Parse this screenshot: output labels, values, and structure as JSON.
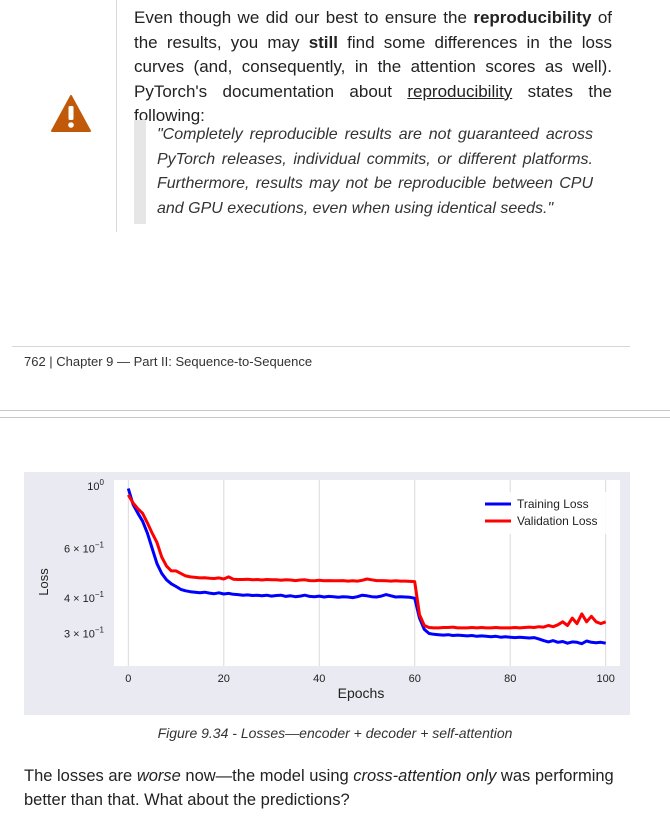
{
  "note": {
    "icon": "warning-icon",
    "icon_color": "#c05a0a",
    "para": {
      "t1": "Even though we did our best to ensure the ",
      "b1": "reproducibility",
      "t2": " of the results, you may ",
      "b2": "still",
      "t3": " find some differences in the loss curves (and, consequently, in the attention scores as well). PyTorch's documentation about ",
      "link": "reproducibility",
      "t4": " states the following:"
    },
    "quote": "\"Completely reproducible results are not guaranteed across PyTorch releases, individual commits, or different platforms. Furthermore, results may not be reproducible between CPU and GPU executions, even when using identical seeds.\""
  },
  "footer": {
    "text": "762 | Chapter 9 — Part II: Sequence-to-Sequence"
  },
  "caption": "Figure 9.34 - Losses—encoder + decoder + self-attention",
  "body": {
    "t1": "The losses are ",
    "i1": "worse",
    "t2": " now—the model using ",
    "i2": "cross-attention only",
    "t3": " was performing better than that. What about the predictions?"
  },
  "chart_data": {
    "type": "line",
    "xlabel": "Epochs",
    "ylabel": "Loss",
    "xlim": [
      -3,
      103
    ],
    "ylim": [
      0.23,
      1.05
    ],
    "yscale": "log",
    "grid": "x",
    "legend_position": "top-right",
    "x_ticks": [
      0,
      20,
      40,
      60,
      80,
      100
    ],
    "y_ticks": [
      {
        "value": 1.0,
        "base": "10",
        "exp": "0"
      },
      {
        "value": 0.6,
        "base": "6 × 10",
        "exp": "−1"
      },
      {
        "value": 0.4,
        "base": "4 × 10",
        "exp": "−1"
      },
      {
        "value": 0.3,
        "base": "3 × 10",
        "exp": "−1"
      }
    ],
    "x": [
      0,
      1,
      2,
      3,
      4,
      5,
      6,
      7,
      8,
      9,
      10,
      11,
      12,
      13,
      14,
      15,
      16,
      17,
      18,
      19,
      20,
      21,
      22,
      23,
      24,
      25,
      26,
      27,
      28,
      29,
      30,
      31,
      32,
      33,
      34,
      35,
      36,
      37,
      38,
      39,
      40,
      41,
      42,
      43,
      44,
      45,
      46,
      47,
      48,
      49,
      50,
      51,
      52,
      53,
      54,
      55,
      56,
      57,
      58,
      59,
      60,
      61,
      62,
      63,
      64,
      65,
      66,
      67,
      68,
      69,
      70,
      71,
      72,
      73,
      74,
      75,
      76,
      77,
      78,
      79,
      80,
      81,
      82,
      83,
      84,
      85,
      86,
      87,
      88,
      89,
      90,
      91,
      92,
      93,
      94,
      95,
      96,
      97,
      98,
      99,
      100
    ],
    "series": [
      {
        "name": "Training Loss",
        "color": "#0000ff",
        "values": [
          0.98,
          0.86,
          0.8,
          0.75,
          0.68,
          0.6,
          0.53,
          0.49,
          0.465,
          0.45,
          0.44,
          0.43,
          0.425,
          0.422,
          0.42,
          0.418,
          0.42,
          0.417,
          0.415,
          0.418,
          0.414,
          0.416,
          0.413,
          0.412,
          0.41,
          0.411,
          0.409,
          0.41,
          0.408,
          0.41,
          0.407,
          0.409,
          0.41,
          0.406,
          0.408,
          0.405,
          0.407,
          0.41,
          0.406,
          0.405,
          0.407,
          0.404,
          0.406,
          0.405,
          0.403,
          0.405,
          0.404,
          0.402,
          0.405,
          0.41,
          0.408,
          0.405,
          0.404,
          0.407,
          0.412,
          0.408,
          0.404,
          0.405,
          0.404,
          0.403,
          0.4,
          0.34,
          0.31,
          0.3,
          0.298,
          0.297,
          0.296,
          0.297,
          0.295,
          0.296,
          0.295,
          0.294,
          0.295,
          0.293,
          0.294,
          0.293,
          0.292,
          0.293,
          0.291,
          0.292,
          0.291,
          0.29,
          0.291,
          0.29,
          0.289,
          0.29,
          0.287,
          0.283,
          0.28,
          0.283,
          0.279,
          0.281,
          0.277,
          0.28,
          0.279,
          0.276,
          0.282,
          0.279,
          0.278,
          0.279,
          0.277
        ]
      },
      {
        "name": "Validation Loss",
        "color": "#ff0000",
        "values": [
          0.93,
          0.87,
          0.83,
          0.8,
          0.74,
          0.68,
          0.63,
          0.56,
          0.52,
          0.5,
          0.5,
          0.49,
          0.48,
          0.476,
          0.474,
          0.472,
          0.473,
          0.471,
          0.47,
          0.472,
          0.468,
          0.476,
          0.467,
          0.466,
          0.466,
          0.467,
          0.465,
          0.466,
          0.464,
          0.466,
          0.465,
          0.465,
          0.463,
          0.465,
          0.464,
          0.462,
          0.464,
          0.465,
          0.462,
          0.461,
          0.463,
          0.461,
          0.462,
          0.461,
          0.461,
          0.462,
          0.46,
          0.461,
          0.46,
          0.463,
          0.468,
          0.465,
          0.462,
          0.462,
          0.461,
          0.46,
          0.461,
          0.46,
          0.46,
          0.459,
          0.458,
          0.35,
          0.32,
          0.315,
          0.314,
          0.314,
          0.315,
          0.315,
          0.316,
          0.314,
          0.314,
          0.314,
          0.315,
          0.314,
          0.315,
          0.314,
          0.314,
          0.315,
          0.314,
          0.314,
          0.314,
          0.315,
          0.314,
          0.315,
          0.316,
          0.315,
          0.317,
          0.316,
          0.32,
          0.317,
          0.322,
          0.33,
          0.32,
          0.34,
          0.325,
          0.352,
          0.33,
          0.345,
          0.33,
          0.325,
          0.33
        ]
      }
    ]
  }
}
